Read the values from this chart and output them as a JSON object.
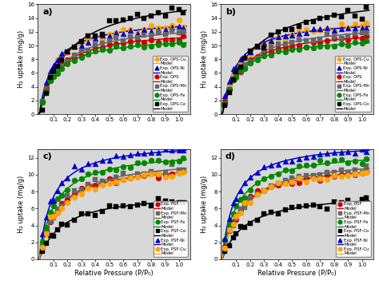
{
  "xlabel": "Relative Pressure (P/P₀)",
  "ylabel": "H₂ uptake (mg/g)",
  "subplot_a": {
    "label": "a)",
    "ylim": [
      0,
      16
    ],
    "yticks": [
      0,
      2,
      4,
      6,
      8,
      10,
      12,
      14,
      16
    ],
    "series": [
      {
        "label": "Exp. OPS-Cu",
        "exp_label": "Exp. OPS-Cu",
        "marker": "o",
        "color": "#FFA500",
        "qm": 14.5,
        "b": 8.0,
        "noise": 0.25
      },
      {
        "label": "Exp. OPS-Ni",
        "exp_label": "Exp. OPS-Ni",
        "marker": "^",
        "color": "#0000CC",
        "qm": 14.0,
        "b": 10.0,
        "noise": 0.2
      },
      {
        "label": "Exp. OPS",
        "exp_label": "Exp. OPS",
        "marker": "o",
        "color": "#CC0000",
        "qm": 12.5,
        "b": 8.0,
        "noise": 0.2
      },
      {
        "label": "Exp. OPS-Mn",
        "exp_label": "Exp. OPS-Mn",
        "marker": "s",
        "color": "#666666",
        "qm": 13.5,
        "b": 7.0,
        "noise": 0.22
      },
      {
        "label": "Exp. OPS-Fe",
        "exp_label": "Exp. OPS-Fe",
        "marker": "o",
        "color": "#008800",
        "qm": 11.5,
        "b": 9.0,
        "noise": 0.18
      },
      {
        "label": "Exp. OPS-Co",
        "exp_label": "Exp. OPS-Co",
        "marker": "s",
        "color": "#000000",
        "qm": 18.0,
        "b": 5.0,
        "noise": 0.45
      }
    ]
  },
  "subplot_b": {
    "label": "b)",
    "ylim": [
      0,
      16
    ],
    "yticks": [
      0,
      2,
      4,
      6,
      8,
      10,
      12,
      14,
      16
    ],
    "series": [
      {
        "label": "Exp. OPS-Cu",
        "exp_label": "Exp. OPS-Cu",
        "marker": "o",
        "color": "#FFA500",
        "qm": 14.5,
        "b": 8.0,
        "noise": 0.25
      },
      {
        "label": "Exp. OPS-Ni",
        "exp_label": "Exp. OPS-Ni",
        "marker": "^",
        "color": "#0000CC",
        "qm": 14.0,
        "b": 10.0,
        "noise": 0.2
      },
      {
        "label": "Exp. OPS",
        "exp_label": "Exp. OPS",
        "marker": "o",
        "color": "#CC0000",
        "qm": 12.5,
        "b": 8.0,
        "noise": 0.2
      },
      {
        "label": "Exp. OPS-Mn",
        "exp_label": "Exp. OPS-Mn",
        "marker": "s",
        "color": "#666666",
        "qm": 13.5,
        "b": 7.0,
        "noise": 0.22
      },
      {
        "label": "Exp. OPS-Fe",
        "exp_label": "Exp. OPS-Fe",
        "marker": "o",
        "color": "#008800",
        "qm": 11.5,
        "b": 9.0,
        "noise": 0.18
      },
      {
        "label": "Exp. OPS-Co",
        "exp_label": "Exp. OPS-Co",
        "marker": "s",
        "color": "#000000",
        "qm": 18.0,
        "b": 5.0,
        "noise": 0.45
      }
    ]
  },
  "subplot_c": {
    "label": "c)",
    "ylim": [
      0,
      13
    ],
    "yticks": [
      0,
      2,
      4,
      6,
      8,
      10,
      12
    ],
    "series": [
      {
        "label": "Exp. PSF",
        "exp_label": "Exp. PSF",
        "marker": "o",
        "color": "#CC0000",
        "qm": 11.5,
        "b": 8.0,
        "noise": 0.2
      },
      {
        "label": "Exp. PSF-Mn",
        "exp_label": "Exp. PSF-Mn",
        "marker": "s",
        "color": "#666666",
        "qm": 12.2,
        "b": 7.0,
        "noise": 0.22
      },
      {
        "label": "Exp. PSF-Fe",
        "exp_label": "Exp. PSF-Fe",
        "marker": "o",
        "color": "#008800",
        "qm": 13.0,
        "b": 9.0,
        "noise": 0.2
      },
      {
        "label": "Exp. PSF-Co",
        "exp_label": "Exp. PSF-Co",
        "marker": "s",
        "color": "#000000",
        "qm": 8.0,
        "b": 6.0,
        "noise": 0.2
      },
      {
        "label": "Exp. PSF-Ni",
        "exp_label": "Exp. PSF-Ni",
        "marker": "^",
        "color": "#0000CC",
        "qm": 14.0,
        "b": 11.0,
        "noise": 0.2
      },
      {
        "label": "Exp. PSF-Cu",
        "exp_label": "Exp. PSF-Cu",
        "marker": "o",
        "color": "#FFA500",
        "qm": 11.5,
        "b": 7.5,
        "noise": 0.2
      }
    ]
  },
  "subplot_d": {
    "label": "d)",
    "ylim": [
      0,
      13
    ],
    "yticks": [
      0,
      2,
      4,
      6,
      8,
      10,
      12
    ],
    "series": [
      {
        "label": "Exp. PSF",
        "exp_label": "Exp. PSF",
        "marker": "o",
        "color": "#CC0000",
        "qm": 11.5,
        "b": 8.0,
        "noise": 0.2
      },
      {
        "label": "Exp. PSF-Mn",
        "exp_label": "Exp. PSF-Mn",
        "marker": "s",
        "color": "#666666",
        "qm": 12.2,
        "b": 7.0,
        "noise": 0.22
      },
      {
        "label": "Exp. PSF-Fe",
        "exp_label": "Exp. PSF-Fe",
        "marker": "o",
        "color": "#008800",
        "qm": 13.0,
        "b": 9.0,
        "noise": 0.2
      },
      {
        "label": "Exp. PSF-Co",
        "exp_label": "Exp. PSF-Co",
        "marker": "s",
        "color": "#000000",
        "qm": 8.0,
        "b": 6.0,
        "noise": 0.2
      },
      {
        "label": "Exp. PSF-Ni",
        "exp_label": "Exp. PSF-Ni",
        "marker": "^",
        "color": "#0000CC",
        "qm": 14.0,
        "b": 11.0,
        "noise": 0.2
      },
      {
        "label": "Exp. PSF-Cu",
        "exp_label": "Exp. PSF-Cu",
        "marker": "o",
        "color": "#FFA500",
        "qm": 11.5,
        "b": 7.5,
        "noise": 0.2
      }
    ]
  },
  "legend_ab": [
    {
      "label": "Exp. OPS-Cu",
      "marker": "o",
      "color": "#FFA500"
    },
    {
      "label": "Model",
      "marker": null,
      "color": "#FFA500"
    },
    {
      "label": "Exp. OPS-Ni",
      "marker": "^",
      "color": "#0000CC"
    },
    {
      "label": "Model",
      "marker": null,
      "color": "#0000CC"
    },
    {
      "label": "Exp. OPS",
      "marker": "o",
      "color": "#CC0000"
    },
    {
      "label": "Model",
      "marker": null,
      "color": "#CC0000"
    },
    {
      "label": "Exp. OPS-Mn",
      "marker": "s",
      "color": "#666666"
    },
    {
      "label": "Model",
      "marker": null,
      "color": "#666666"
    },
    {
      "label": "Exp. OPS-Fe",
      "marker": "o",
      "color": "#008800"
    },
    {
      "label": "Model",
      "marker": null,
      "color": "#008800"
    },
    {
      "label": "Exp. OPS-Co",
      "marker": "s",
      "color": "#000000"
    },
    {
      "label": "Model",
      "marker": null,
      "color": "#000000"
    }
  ],
  "legend_cd": [
    {
      "label": "Exp. PSF",
      "marker": "o",
      "color": "#CC0000"
    },
    {
      "label": "Model",
      "marker": null,
      "color": "#CC0000"
    },
    {
      "label": "Exp. PSF-Mn",
      "marker": "s",
      "color": "#666666"
    },
    {
      "label": "Model",
      "marker": null,
      "color": "#666666"
    },
    {
      "label": "Exp. PSF-Fe",
      "marker": "o",
      "color": "#008800"
    },
    {
      "label": "Model",
      "marker": null,
      "color": "#008800"
    },
    {
      "label": "Exp. PSF-Co",
      "marker": "s",
      "color": "#000000"
    },
    {
      "label": "Model",
      "marker": null,
      "color": "#000000"
    },
    {
      "label": "Exp. PSF-Ni",
      "marker": "^",
      "color": "#0000CC"
    },
    {
      "label": "Model",
      "marker": null,
      "color": "#0000CC"
    },
    {
      "label": "Exp. PSF-Cu",
      "marker": "o",
      "color": "#FFA500"
    },
    {
      "label": "Model",
      "marker": null,
      "color": "#FFA500"
    }
  ],
  "bg_color": "#D8D8D8",
  "fig_bg": "#FFFFFF",
  "xticks": [
    0.1,
    0.2,
    0.3,
    0.4,
    0.5,
    0.6,
    0.7,
    0.8,
    0.9,
    1.0
  ]
}
